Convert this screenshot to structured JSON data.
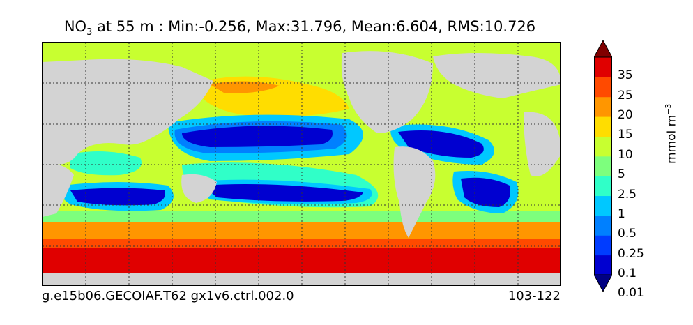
{
  "title": {
    "var_main": "NO",
    "var_sub": "3",
    "rest": " at 55 m : Min:-0.256, Max:31.796, Mean:6.604, RMS:10.726"
  },
  "footer": {
    "case": "g.e15b06.GECOIAF.T62 gx1v6.ctrl.002.0",
    "years": "103-122"
  },
  "colorbar": {
    "unit_main": "mmol m",
    "unit_sup": "−3",
    "labels": [
      "35",
      "25",
      "20",
      "15",
      "10",
      "5",
      "2.5",
      "1",
      "0.5",
      "0.25",
      "0.1",
      "0.01"
    ],
    "colors": [
      "#000083",
      "#0000d0",
      "#003cff",
      "#0080ff",
      "#00c8ff",
      "#30ffc8",
      "#7dff7d",
      "#c8ff30",
      "#ffdd00",
      "#ff9600",
      "#ff4a00",
      "#e00000",
      "#800000"
    ],
    "extend": "both"
  },
  "map": {
    "land_color": "#d3d3d3",
    "projection": "cylindrical",
    "grid": "dashed"
  }
}
